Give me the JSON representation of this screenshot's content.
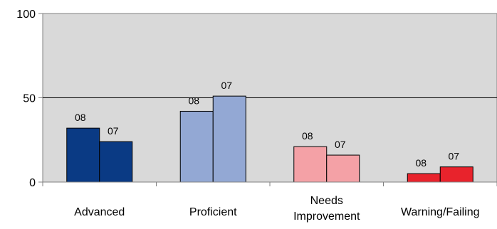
{
  "chart_data": {
    "type": "bar",
    "title": "",
    "xlabel": "",
    "ylabel": "",
    "ylim": [
      0,
      100
    ],
    "yticks": [
      "0",
      "50",
      "100"
    ],
    "grid": true,
    "plot_background": "#d9d9d9",
    "categories": [
      "Advanced",
      "Proficient",
      "Needs Improvement",
      "Warning/Failing"
    ],
    "bars": [
      [
        {
          "label": "08",
          "value": 32,
          "color": "#0a3a84"
        },
        {
          "label": "07",
          "value": 24,
          "color": "#0a3a84"
        }
      ],
      [
        {
          "label": "08",
          "value": 42,
          "color": "#93a8d4"
        },
        {
          "label": "07",
          "value": 51,
          "color": "#93a8d4"
        }
      ],
      [
        {
          "label": "08",
          "value": 21,
          "color": "#f4a1a6"
        },
        {
          "label": "07",
          "value": 16,
          "color": "#f4a1a6"
        }
      ],
      [
        {
          "label": "08",
          "value": 5,
          "color": "#e8232c"
        },
        {
          "label": "07",
          "value": 9,
          "color": "#e8232c"
        }
      ]
    ]
  }
}
